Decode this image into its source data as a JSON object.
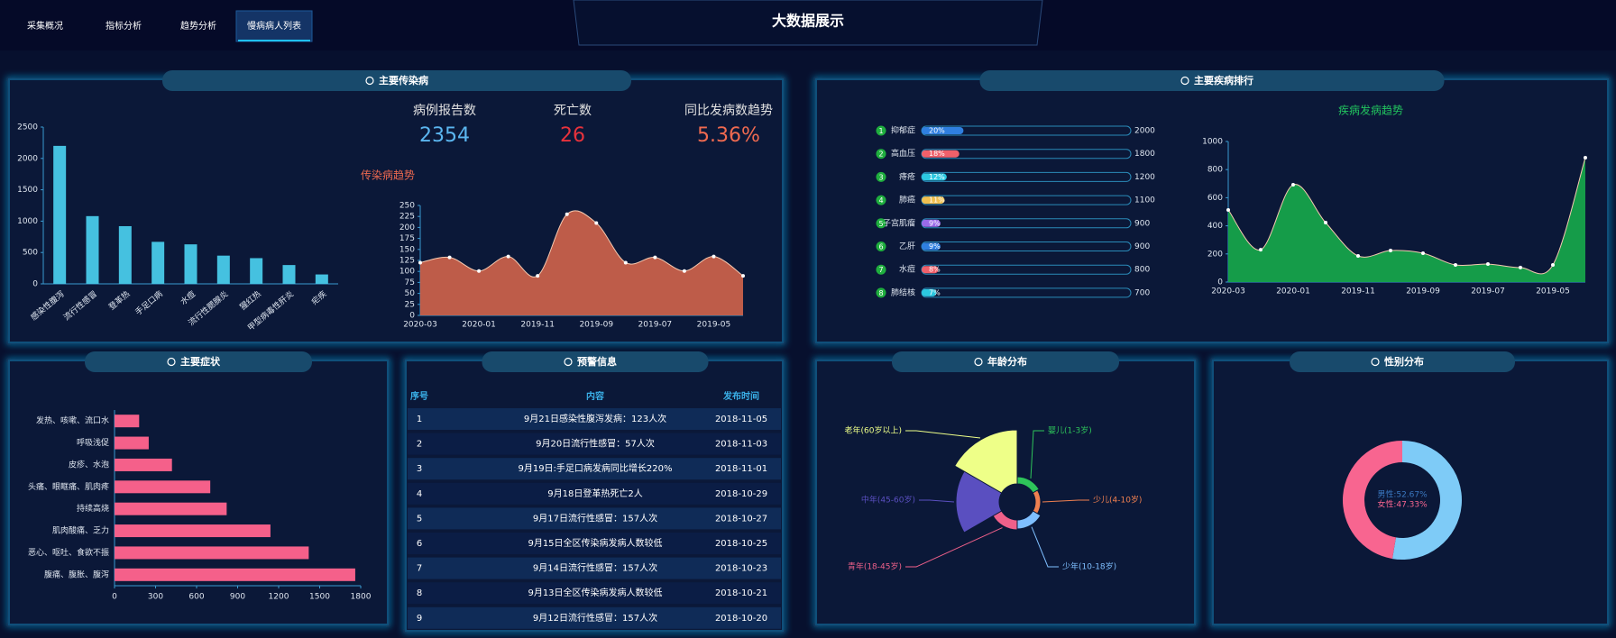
{
  "nav": [
    "采集概况",
    "指标分析",
    "趋势分析",
    "慢病病人列表"
  ],
  "title": "大数据展示",
  "panels": [
    "主要传染病",
    "主要疾病排行",
    "主要症状",
    "预警信息",
    "年龄分布",
    "性别分布"
  ],
  "stats": [
    {
      "label": "病例报告数",
      "value": 2354
    },
    {
      "label": "死亡数",
      "value": 26
    },
    {
      "label": "同比发病数趋势",
      "value": "5.36%"
    }
  ],
  "warnings": {
    "columns": [
      "序号",
      "内容",
      "发布时间"
    ],
    "rows": [
      [
        1,
        "9月21日感染性腹泻发病：123人次",
        "2018-11-05"
      ],
      [
        2,
        "9月20日流行性感冒：57人次",
        "2018-11-03"
      ],
      [
        3,
        "9月19日:手足口病发病同比增长220%",
        "2018-11-01"
      ],
      [
        4,
        "9月18日登革热死亡2人",
        "2018-10-29"
      ],
      [
        5,
        "9月17日流行性感冒：157人次",
        "2018-10-27"
      ],
      [
        6,
        "9月15日全区传染病发病人数较低",
        "2018-10-25"
      ],
      [
        7,
        "9月14日流行性感冒：157人次",
        "2018-10-23"
      ],
      [
        8,
        "9月13日全区传染病发病人数较低",
        "2018-10-21"
      ],
      [
        9,
        "9月12日流行性感冒：157人次",
        "2018-10-20"
      ]
    ]
  },
  "chart_data": [
    {
      "type": "bar",
      "categories": [
        "感染性腹泻",
        "流行性感冒",
        "登革热",
        "手足口病",
        "水痘",
        "流行性腮腺炎",
        "猩红热",
        "甲型病毒性肝炎",
        "疟疾"
      ],
      "values": [
        2200,
        1080,
        920,
        670,
        630,
        450,
        410,
        300,
        150
      ],
      "color": "#45c1e0",
      "ylim": [
        0,
        2500
      ],
      "yticks": [
        0,
        500,
        1000,
        1500,
        2000,
        2500
      ]
    },
    {
      "type": "area",
      "title": "传染病趋势",
      "x": [
        "2020-03",
        null,
        "2020-01",
        null,
        "2019-11",
        null,
        "2019-09",
        null,
        "2019-07",
        null,
        "2019-05",
        null
      ],
      "values": [
        120,
        132,
        101,
        134,
        90,
        230,
        210,
        120,
        132,
        101,
        134,
        90
      ],
      "color": "#c8604a",
      "ylim": [
        0,
        250
      ],
      "yticks": [
        0,
        25,
        50,
        75,
        100,
        125,
        150,
        175,
        200,
        225,
        250
      ]
    },
    {
      "type": "rank",
      "ranks": [
        1,
        2,
        3,
        4,
        5,
        6,
        7,
        8
      ],
      "categories": [
        "抑郁症",
        "高血压",
        "痔疮",
        "肺癌",
        "子宫肌瘤",
        "乙肝",
        "水痘",
        "肺结核"
      ],
      "values": [
        20,
        18,
        12,
        11,
        9,
        9,
        8,
        7
      ],
      "value_labels": [
        "20%",
        "18%",
        "12%",
        "11%",
        "9%",
        "9%",
        "8%",
        "7%"
      ],
      "counts": [
        2000,
        1800,
        1200,
        1100,
        900,
        900,
        800,
        700
      ],
      "colors": [
        "#2f7fe0",
        "#f0606a",
        "#2cc8e0",
        "#f0c050",
        "#9a6ae8",
        "#2f7fe0",
        "#f0606a",
        "#2cc8e0"
      ],
      "xlim": [
        0,
        100
      ]
    },
    {
      "type": "area",
      "title": "疾病发病趋势",
      "x": [
        "2020-03",
        null,
        "2020-01",
        null,
        "2019-11",
        null,
        "2019-09",
        null,
        "2019-07",
        null,
        "2019-05",
        null
      ],
      "values": [
        513,
        230,
        692,
        423,
        186,
        224,
        205,
        122,
        128,
        103,
        122,
        885
      ],
      "color": "#16a34a",
      "ylim": [
        0,
        1000
      ],
      "yticks": [
        0,
        200,
        400,
        600,
        800,
        1000
      ]
    },
    {
      "type": "hbar",
      "categories": [
        "发热、咳嗽、流口水",
        "呼吸浅促",
        "皮疹、水泡",
        "头痛、眼眶痛、肌肉疼",
        "持续高烧",
        "肌肉酸痛、乏力",
        "恶心、呕吐、食欲不振",
        "腹痛、腹胀、腹泻"
      ],
      "values": [
        180,
        250,
        420,
        700,
        820,
        1140,
        1420,
        1760
      ],
      "color": "#f5608a",
      "xlim": [
        0,
        1800
      ],
      "xticks": [
        0,
        300,
        600,
        900,
        1200,
        1500,
        1800
      ]
    },
    {
      "type": "rose",
      "categories": [
        "婴儿(1-3岁)",
        "少儿(4-10岁)",
        "少年(10-18岁)",
        "青年(18-45岁)",
        "中年(45-60岁)",
        "老年(60岁以上)"
      ],
      "values": [
        8,
        6,
        10,
        11,
        48,
        60
      ],
      "colors": [
        "#2ec45a",
        "#f08050",
        "#7fbfff",
        "#f0608a",
        "#5a4fc0",
        "#eeff88"
      ]
    },
    {
      "type": "donut",
      "values": [
        52.67,
        47.33
      ],
      "value_labels": [
        "男性:52.67%",
        "女性:47.33%"
      ],
      "colors": [
        "#7ecbf7",
        "#f86590"
      ]
    }
  ]
}
